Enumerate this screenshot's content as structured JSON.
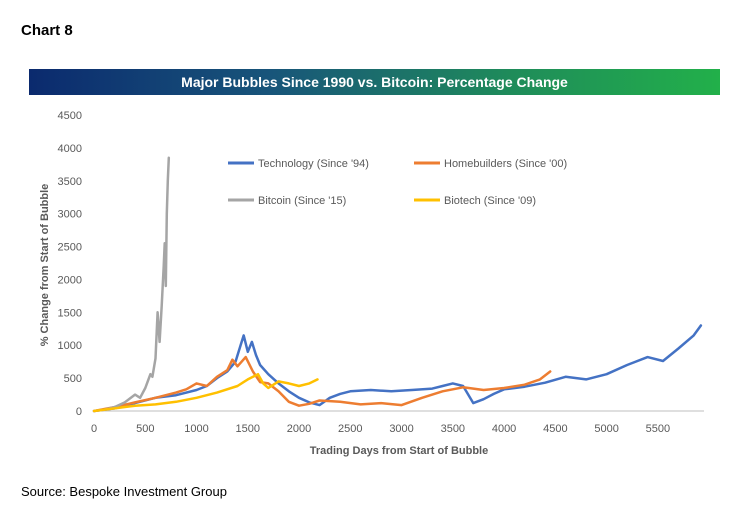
{
  "header": {
    "chart_label": "Chart 8"
  },
  "footer": {
    "source": "Source: Bespoke Investment Group"
  },
  "colors": {
    "technology": "#4472C4",
    "homebuilders": "#ED7D31",
    "bitcoin": "#A5A5A5",
    "biotech": "#FFC000",
    "axis_text": "#595959"
  },
  "chart_data": {
    "type": "line",
    "title": "Major Bubbles Since 1990 vs. Bitcoin: Percentage Change",
    "xlabel": "Trading Days from Start of Bubble",
    "ylabel": "% Change from Start of Bubble",
    "xlim": [
      0,
      5950
    ],
    "ylim": [
      0,
      4500
    ],
    "xticks": [
      0,
      500,
      1000,
      1500,
      2000,
      2500,
      3000,
      3500,
      4000,
      4500,
      5000,
      5500
    ],
    "yticks": [
      0,
      500,
      1000,
      1500,
      2000,
      2500,
      3000,
      3500,
      4000,
      4500
    ],
    "grid": false,
    "legend_position": "top-center",
    "series": [
      {
        "name": "Technology (Since '94)",
        "color": "#4472C4",
        "points": [
          [
            0,
            0
          ],
          [
            200,
            40
          ],
          [
            400,
            120
          ],
          [
            600,
            200
          ],
          [
            800,
            240
          ],
          [
            1000,
            320
          ],
          [
            1100,
            380
          ],
          [
            1200,
            500
          ],
          [
            1300,
            600
          ],
          [
            1380,
            750
          ],
          [
            1430,
            1000
          ],
          [
            1460,
            1150
          ],
          [
            1500,
            900
          ],
          [
            1540,
            1050
          ],
          [
            1580,
            850
          ],
          [
            1620,
            700
          ],
          [
            1700,
            560
          ],
          [
            1800,
            420
          ],
          [
            1900,
            300
          ],
          [
            2000,
            200
          ],
          [
            2100,
            130
          ],
          [
            2200,
            90
          ],
          [
            2300,
            200
          ],
          [
            2400,
            260
          ],
          [
            2500,
            300
          ],
          [
            2700,
            320
          ],
          [
            2900,
            300
          ],
          [
            3100,
            320
          ],
          [
            3300,
            340
          ],
          [
            3400,
            380
          ],
          [
            3500,
            420
          ],
          [
            3600,
            380
          ],
          [
            3700,
            120
          ],
          [
            3800,
            180
          ],
          [
            3900,
            260
          ],
          [
            4000,
            330
          ],
          [
            4200,
            370
          ],
          [
            4400,
            430
          ],
          [
            4600,
            520
          ],
          [
            4800,
            480
          ],
          [
            5000,
            560
          ],
          [
            5200,
            700
          ],
          [
            5400,
            820
          ],
          [
            5550,
            760
          ],
          [
            5700,
            950
          ],
          [
            5850,
            1150
          ],
          [
            5920,
            1300
          ]
        ]
      },
      {
        "name": "Homebuilders (Since '00)",
        "color": "#ED7D31",
        "points": [
          [
            0,
            0
          ],
          [
            200,
            60
          ],
          [
            400,
            130
          ],
          [
            600,
            200
          ],
          [
            800,
            280
          ],
          [
            900,
            330
          ],
          [
            1000,
            420
          ],
          [
            1100,
            380
          ],
          [
            1200,
            520
          ],
          [
            1300,
            620
          ],
          [
            1350,
            780
          ],
          [
            1400,
            680
          ],
          [
            1480,
            820
          ],
          [
            1550,
            600
          ],
          [
            1620,
            440
          ],
          [
            1700,
            420
          ],
          [
            1800,
            300
          ],
          [
            1900,
            140
          ],
          [
            2000,
            80
          ],
          [
            2100,
            110
          ],
          [
            2200,
            160
          ],
          [
            2400,
            140
          ],
          [
            2600,
            100
          ],
          [
            2800,
            120
          ],
          [
            3000,
            90
          ],
          [
            3200,
            200
          ],
          [
            3400,
            300
          ],
          [
            3600,
            360
          ],
          [
            3800,
            320
          ],
          [
            4000,
            350
          ],
          [
            4200,
            400
          ],
          [
            4350,
            480
          ],
          [
            4450,
            600
          ]
        ]
      },
      {
        "name": "Bitcoin (Since '15)",
        "color": "#A5A5A5",
        "points": [
          [
            0,
            0
          ],
          [
            100,
            20
          ],
          [
            200,
            60
          ],
          [
            300,
            130
          ],
          [
            400,
            250
          ],
          [
            450,
            200
          ],
          [
            500,
            350
          ],
          [
            550,
            560
          ],
          [
            570,
            520
          ],
          [
            600,
            800
          ],
          [
            620,
            1500
          ],
          [
            640,
            1050
          ],
          [
            660,
            1600
          ],
          [
            680,
            2200
          ],
          [
            690,
            2550
          ],
          [
            700,
            1900
          ],
          [
            710,
            3000
          ],
          [
            720,
            3500
          ],
          [
            730,
            3850
          ]
        ]
      },
      {
        "name": "Biotech (Since '09)",
        "color": "#FFC000",
        "points": [
          [
            0,
            0
          ],
          [
            200,
            40
          ],
          [
            400,
            80
          ],
          [
            600,
            100
          ],
          [
            800,
            140
          ],
          [
            1000,
            200
          ],
          [
            1200,
            280
          ],
          [
            1400,
            380
          ],
          [
            1500,
            480
          ],
          [
            1600,
            560
          ],
          [
            1650,
            420
          ],
          [
            1700,
            350
          ],
          [
            1800,
            450
          ],
          [
            1900,
            420
          ],
          [
            2000,
            380
          ],
          [
            2100,
            420
          ],
          [
            2180,
            480
          ]
        ]
      }
    ]
  }
}
